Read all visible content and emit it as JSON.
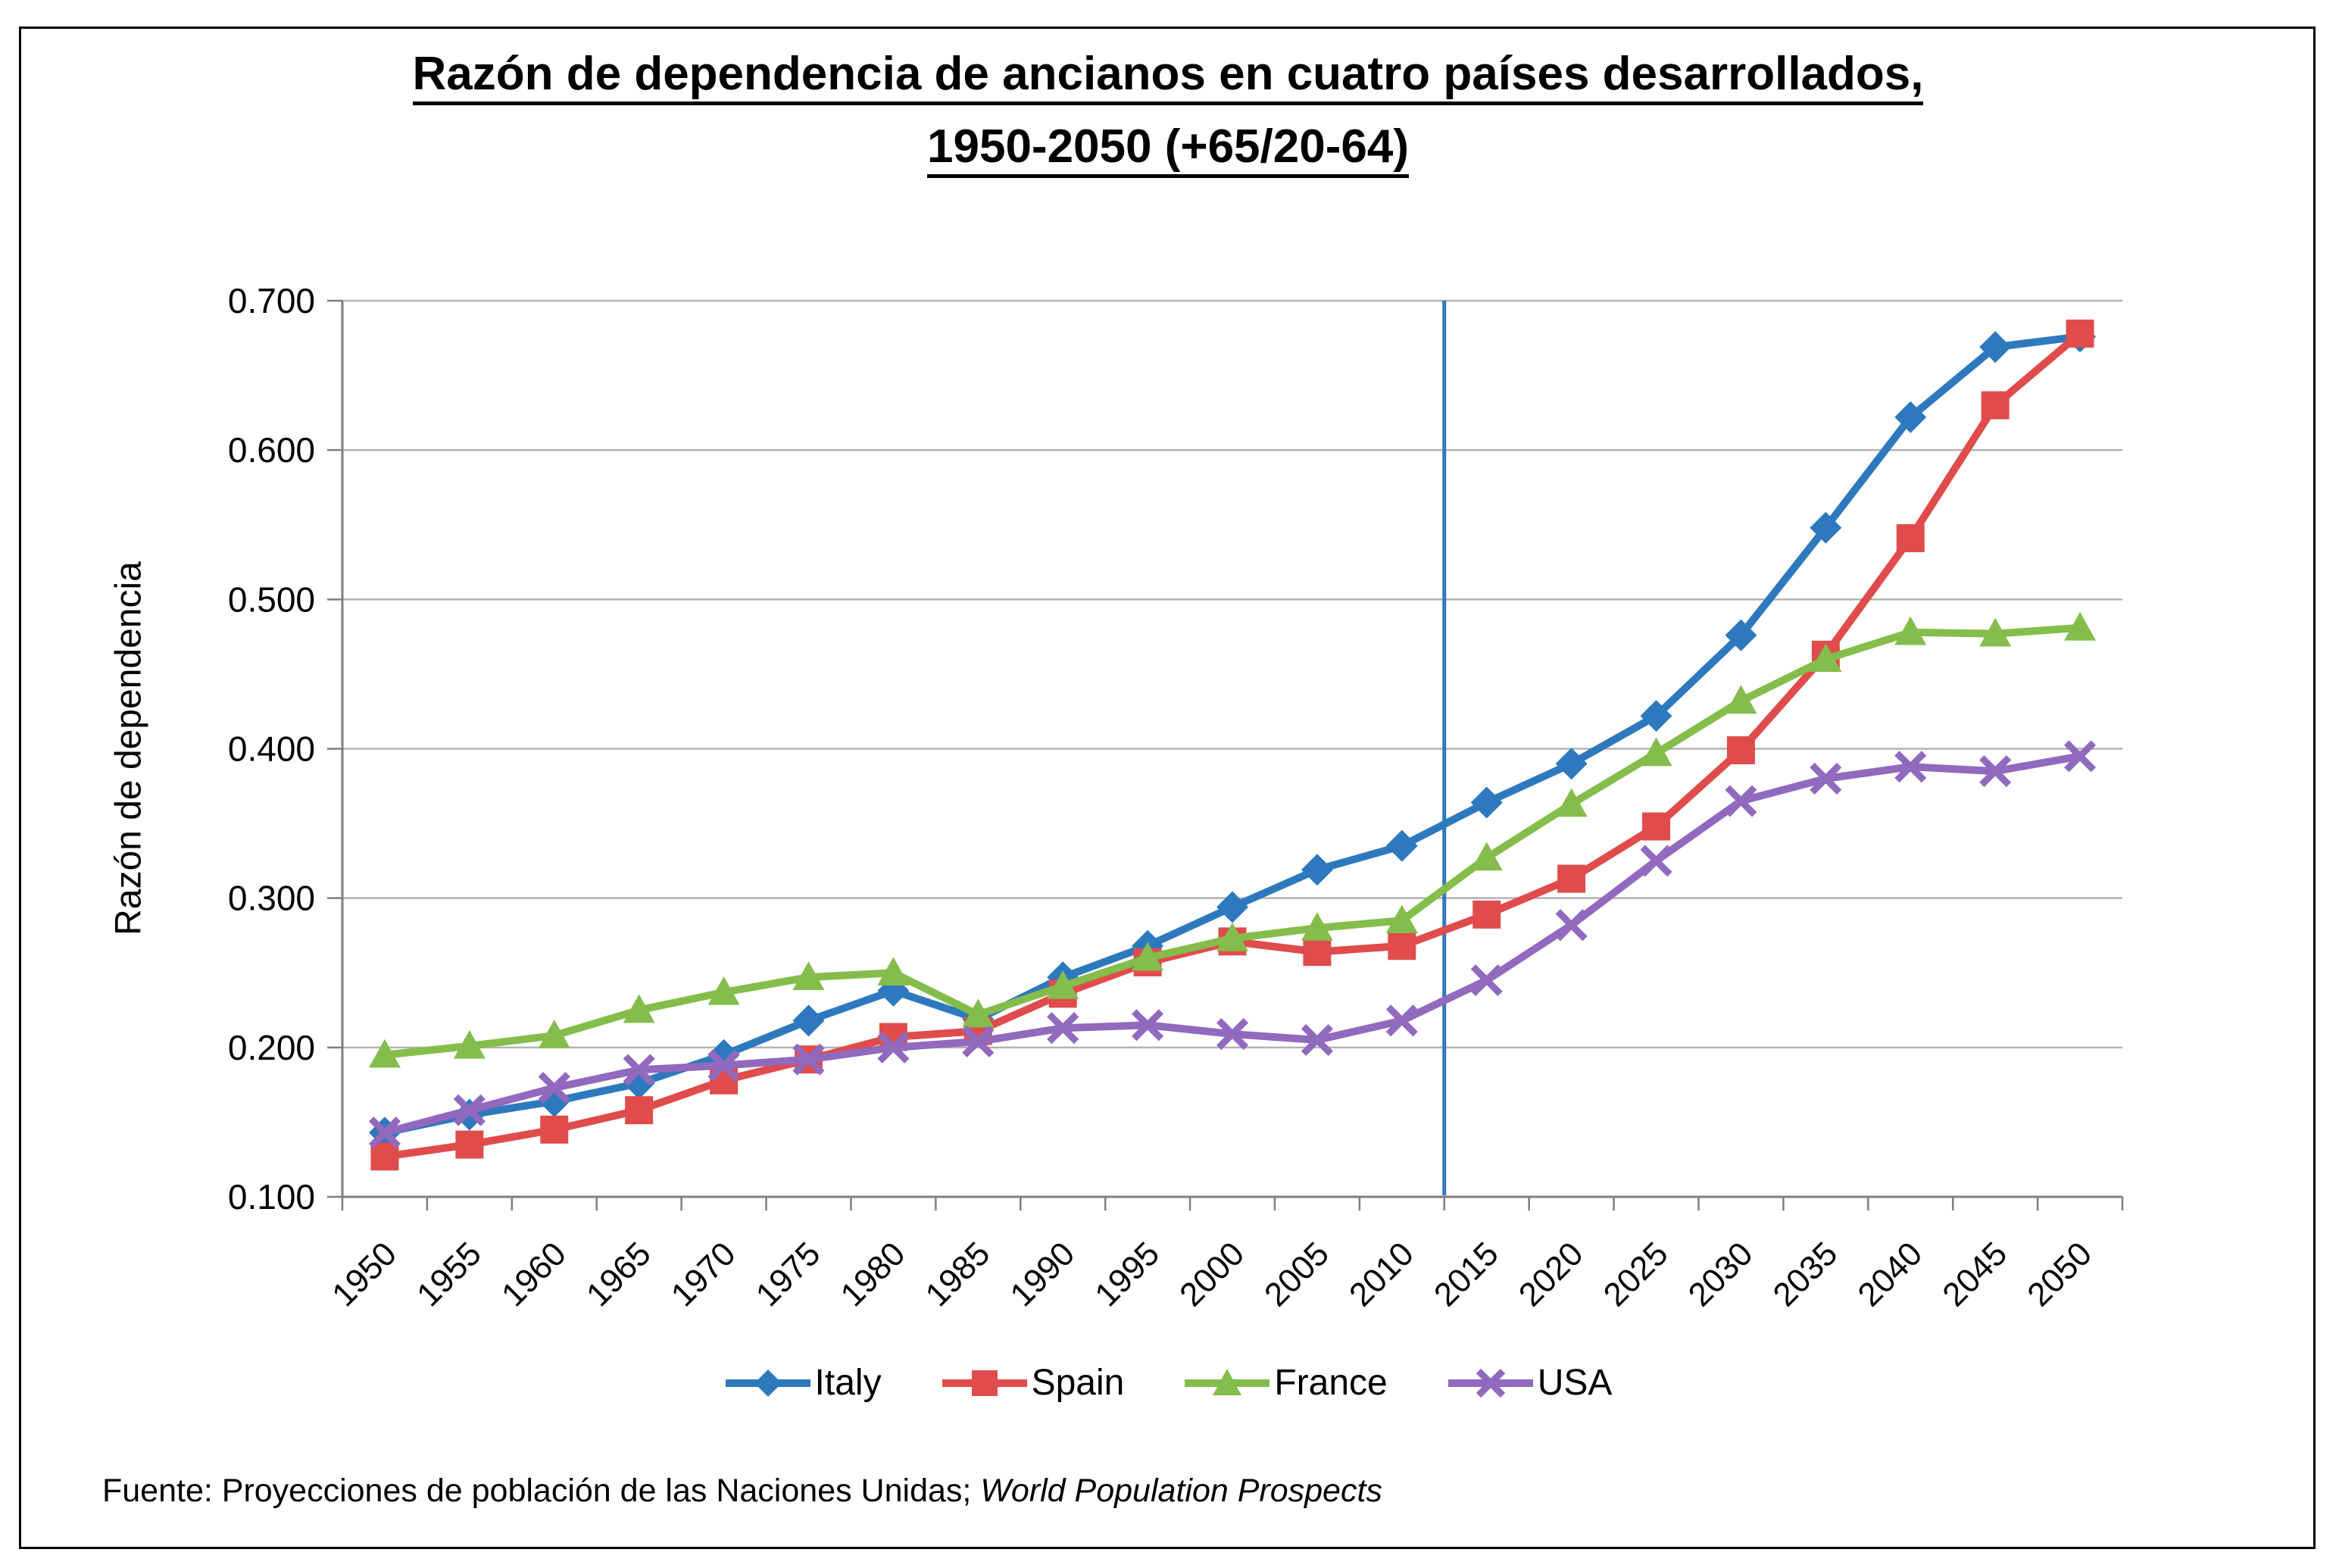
{
  "title": {
    "line1": "Razón de dependencia de ancianos en cuatro países desarrollados,",
    "line2": "1950-2050 (+65/20-64)"
  },
  "source": {
    "prefix": "Fuente: Proyecciones de población de las Naciones Unidas; ",
    "italic": "World Population Prospects"
  },
  "chart_data": {
    "type": "line",
    "title": "Razón de dependencia de ancianos en cuatro países desarrollados, 1950-2050 (+65/20-64)",
    "ylabel": "Razón de dependencia",
    "xlabel": "",
    "categories": [
      "1950",
      "1955",
      "1960",
      "1965",
      "1970",
      "1975",
      "1980",
      "1985",
      "1990",
      "1995",
      "2000",
      "2005",
      "2010",
      "2015",
      "2020",
      "2025",
      "2030",
      "2035",
      "2040",
      "2045",
      "2050"
    ],
    "ylim": [
      0.1,
      0.7
    ],
    "yticks": [
      "0.100",
      "0.200",
      "0.300",
      "0.400",
      "0.500",
      "0.600",
      "0.700"
    ],
    "grid": true,
    "legend_position": "bottom-center",
    "divider_line": {
      "after_category": "2010",
      "color": "#2e79be"
    },
    "colors": {
      "grid": "#b3b3b3",
      "axis": "#7f7f7f",
      "frame": "#000000"
    },
    "series": [
      {
        "name": "Italy",
        "color": "#2e79be",
        "marker": "diamond",
        "values": [
          0.143,
          0.155,
          0.164,
          0.176,
          0.195,
          0.218,
          0.238,
          0.219,
          0.247,
          0.268,
          0.294,
          0.319,
          0.335,
          0.364,
          0.39,
          0.422,
          0.476,
          0.548,
          0.622,
          0.669,
          0.676
        ]
      },
      {
        "name": "Spain",
        "color": "#e04b4b",
        "marker": "square",
        "values": [
          0.127,
          0.135,
          0.145,
          0.158,
          0.178,
          0.192,
          0.207,
          0.211,
          0.236,
          0.257,
          0.271,
          0.264,
          0.268,
          0.289,
          0.313,
          0.348,
          0.399,
          0.463,
          0.541,
          0.63,
          0.678
        ]
      },
      {
        "name": "France",
        "color": "#84bd4b",
        "marker": "triangle",
        "values": [
          0.195,
          0.201,
          0.208,
          0.225,
          0.237,
          0.247,
          0.25,
          0.222,
          0.241,
          0.26,
          0.273,
          0.28,
          0.285,
          0.327,
          0.363,
          0.397,
          0.432,
          0.46,
          0.478,
          0.477,
          0.481
        ]
      },
      {
        "name": "USA",
        "color": "#9169be",
        "marker": "x",
        "values": [
          0.143,
          0.158,
          0.173,
          0.185,
          0.188,
          0.192,
          0.2,
          0.204,
          0.213,
          0.215,
          0.209,
          0.205,
          0.218,
          0.245,
          0.282,
          0.325,
          0.365,
          0.38,
          0.388,
          0.385,
          0.395
        ]
      }
    ]
  }
}
